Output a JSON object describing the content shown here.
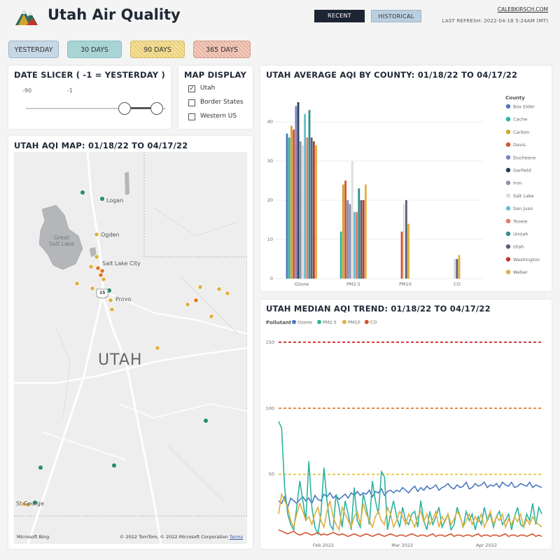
{
  "header": {
    "title": "Utah Air Quality",
    "recent_label": "RECENT",
    "historical_label": "HISTORICAL",
    "author_link": "CALEBKIRSCH.COM",
    "last_refresh": "LAST REFRESH: 2022-04-18 5:24AM (MT)"
  },
  "ranges": [
    "YESTERDAY",
    "30 DAYS",
    "90 DAYS",
    "365 DAYS"
  ],
  "date_slicer": {
    "title": "DATE SLICER ( -1 = YESTERDAY )",
    "min_label": "-90",
    "max_label": "-1"
  },
  "map_display": {
    "title": "MAP DISPLAY",
    "options": [
      {
        "label": "Utah",
        "checked": true
      },
      {
        "label": "Border States",
        "checked": false
      },
      {
        "label": "Western US",
        "checked": false
      }
    ]
  },
  "map": {
    "title": "UTAH AQI MAP: 01/18/22 TO 04/17/22",
    "state_label": "UTAH",
    "places": [
      "Logan",
      "Ogden",
      "Great Salt Lake",
      "Salt Lake City",
      "Provo",
      "St George"
    ],
    "highway_shield": "15",
    "attribution": "© 2022 TomTom, © 2022 Microsoft Corporation",
    "terms_label": "Terms",
    "bing_label": "Microsoft Bing"
  },
  "bar_chart_title": "UTAH AVERAGE AQI BY COUNTY: 01/18/22 TO 04/17/22",
  "trend_chart_title": "UTAH MEDIAN AQI TREND: 01/18/22 TO 04/17/22",
  "chart_data": [
    {
      "type": "bar",
      "categories": [
        "Ozone",
        "PM2.5",
        "PM10",
        "CO"
      ],
      "ylim": [
        0,
        45
      ],
      "yticks": [
        0,
        10,
        20,
        30,
        40
      ],
      "legend_title": "County",
      "legend_position": "right",
      "grid": true,
      "series": [
        {
          "name": "Box Elder",
          "color": "#4a78c0",
          "values": [
            37,
            null,
            null,
            null
          ]
        },
        {
          "name": "Cache",
          "color": "#2bb3a0",
          "values": [
            36,
            12,
            null,
            null
          ]
        },
        {
          "name": "Carbon",
          "color": "#d4a130",
          "values": [
            39,
            24,
            null,
            null
          ]
        },
        {
          "name": "Davis",
          "color": "#d4542e",
          "values": [
            38,
            25,
            12,
            null
          ]
        },
        {
          "name": "Duchesne",
          "color": "#7a84c8",
          "values": [
            44,
            20,
            null,
            null
          ]
        },
        {
          "name": "Garfield",
          "color": "#2c3e58",
          "values": [
            45,
            null,
            null,
            null
          ]
        },
        {
          "name": "Iron",
          "color": "#8d93a2",
          "values": [
            35,
            19,
            null,
            null
          ]
        },
        {
          "name": "Salt Lake",
          "color": "#dcdde1",
          "values": [
            34,
            30,
            19,
            5
          ]
        },
        {
          "name": "San Juan",
          "color": "#60c0d0",
          "values": [
            42,
            17,
            null,
            null
          ]
        },
        {
          "name": "Tooele",
          "color": "#e07a6a",
          "values": [
            36,
            17,
            null,
            null
          ]
        },
        {
          "name": "Uintah",
          "color": "#2f8d8d",
          "values": [
            43,
            23,
            null,
            null
          ]
        },
        {
          "name": "Utah",
          "color": "#5a6170",
          "values": [
            36,
            20,
            20,
            5
          ]
        },
        {
          "name": "Washington",
          "color": "#c0392b",
          "values": [
            35,
            20,
            null,
            null
          ]
        },
        {
          "name": "Weber",
          "color": "#e0b040",
          "values": [
            34,
            24,
            14,
            6
          ]
        }
      ]
    },
    {
      "type": "line",
      "legend_title": "Pollutant",
      "legend_position": "top-left",
      "ylim": [
        0,
        160
      ],
      "yticks": [
        50,
        100,
        150
      ],
      "xticks": [
        "Feb 2022",
        "Mar 2022",
        "Apr 2022"
      ],
      "reference_lines": [
        {
          "value": 150,
          "color": "#cc1f1f"
        },
        {
          "value": 100,
          "color": "#e0761e"
        },
        {
          "value": 50,
          "color": "#e6c33a"
        }
      ],
      "series": [
        {
          "name": "Ozone",
          "color": "#4a78c0",
          "values": [
            30,
            28,
            33,
            25,
            32,
            30,
            28,
            31,
            33,
            30,
            32,
            28,
            34,
            31,
            30,
            35,
            33,
            36,
            32,
            34,
            31,
            33,
            35,
            32,
            36,
            34,
            37,
            34,
            36,
            35,
            38,
            33,
            37,
            36,
            39,
            34,
            37,
            38,
            36,
            38,
            37,
            40,
            38,
            36,
            39,
            41,
            37,
            40,
            38,
            41,
            39,
            40,
            42,
            38,
            40,
            41,
            43,
            40,
            39,
            42,
            40,
            41,
            44,
            39,
            40,
            43,
            41,
            42,
            44,
            40,
            42,
            41,
            43,
            40,
            44,
            42,
            41,
            44,
            40,
            41,
            43,
            42,
            41,
            44,
            40,
            42,
            41,
            40
          ]
        },
        {
          "name": "PM2.5",
          "color": "#2bb3a0",
          "values": [
            90,
            85,
            40,
            20,
            12,
            8,
            25,
            45,
            30,
            15,
            60,
            25,
            10,
            5,
            20,
            55,
            30,
            12,
            8,
            35,
            25,
            10,
            30,
            20,
            8,
            40,
            15,
            10,
            35,
            25,
            12,
            45,
            30,
            20,
            52,
            48,
            8,
            20,
            30,
            18,
            10,
            25,
            15,
            12,
            20,
            22,
            10,
            30,
            15,
            8,
            22,
            12,
            18,
            25,
            10,
            15,
            20,
            8,
            12,
            25,
            18,
            10,
            22,
            15,
            20,
            8,
            18,
            12,
            25,
            15,
            20,
            10,
            18,
            22,
            12,
            15,
            20,
            8,
            18,
            25,
            12,
            10,
            20,
            15,
            28,
            12,
            25,
            20
          ]
        },
        {
          "name": "PM10",
          "color": "#e0b040",
          "values": [
            20,
            35,
            30,
            25,
            15,
            10,
            20,
            28,
            22,
            15,
            18,
            12,
            20,
            25,
            15,
            10,
            22,
            30,
            18,
            12,
            8,
            25,
            20,
            15,
            10,
            18,
            22,
            12,
            28,
            20,
            15,
            10,
            18,
            22,
            15,
            12,
            25,
            20,
            10,
            15,
            22,
            18,
            12,
            20,
            15,
            10,
            18,
            22,
            14,
            20,
            12,
            16,
            22,
            10,
            18,
            14,
            20,
            12,
            16,
            22,
            18,
            10,
            15,
            20,
            12,
            18,
            14,
            20,
            10,
            16,
            22,
            12,
            18,
            15,
            20,
            10,
            16,
            12,
            18,
            14,
            20,
            10,
            16,
            12,
            18,
            14,
            12,
            10
          ]
        },
        {
          "name": "CO",
          "color": "#d4542e",
          "values": [
            8,
            7,
            6,
            5,
            6,
            7,
            5,
            4,
            5,
            6,
            5,
            4,
            5,
            6,
            4,
            5,
            4,
            5,
            6,
            5,
            4,
            5,
            4,
            3,
            4,
            5,
            4,
            3,
            4,
            5,
            4,
            3,
            4,
            5,
            4,
            3,
            4,
            5,
            4,
            3,
            4,
            4,
            3,
            4,
            5,
            4,
            3,
            4,
            4,
            3,
            4,
            5,
            3,
            4,
            4,
            3,
            4,
            5,
            3,
            4,
            4,
            3,
            4,
            4,
            3,
            4,
            5,
            3,
            4,
            4,
            3,
            4,
            4,
            3,
            4,
            5,
            3,
            4,
            4,
            3,
            4,
            4,
            3,
            4,
            5,
            3,
            4,
            3
          ]
        }
      ]
    }
  ]
}
